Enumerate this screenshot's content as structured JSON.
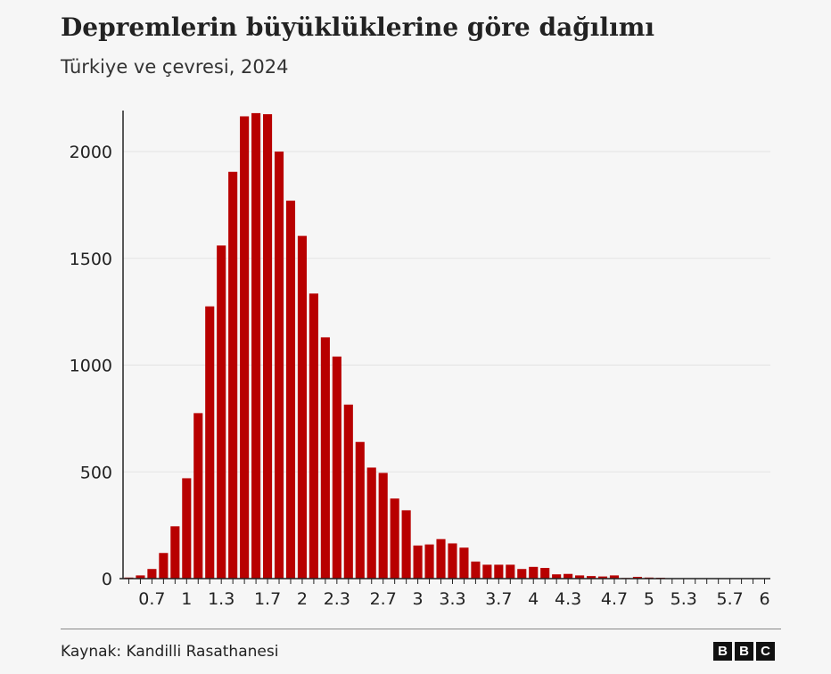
{
  "header": {
    "title": "Depremlerin büyüklüklerine göre dağılımı",
    "subtitle": "Türkiye ve çevresi, 2024"
  },
  "footer": {
    "source": "Kaynak: Kandilli Rasathanesi",
    "logo": [
      "B",
      "B",
      "C"
    ]
  },
  "colors": {
    "bar": "#b80000",
    "background": "#f6f6f6",
    "grid": "#e3e3e3",
    "axis": "#222222"
  },
  "chart_data": {
    "type": "bar",
    "title": "Depremlerin büyüklüklerine göre dağılımı",
    "subtitle": "Türkiye ve çevresi, 2024",
    "xlabel": "",
    "ylabel": "",
    "ylim": [
      0,
      2200
    ],
    "xlim": [
      0.45,
      6.05
    ],
    "grid": true,
    "legend": "none",
    "y_ticks": [
      0,
      500,
      1000,
      1500,
      2000
    ],
    "x_ticks": [
      "0.7",
      "1",
      "1.3",
      "1.7",
      "2",
      "2.3",
      "2.7",
      "3",
      "3.3",
      "3.7",
      "4",
      "4.3",
      "4.7",
      "5",
      "5.3",
      "5.7",
      "6"
    ],
    "x_tick_values": [
      0.7,
      1,
      1.3,
      1.7,
      2,
      2.3,
      2.7,
      3,
      3.3,
      3.7,
      4,
      4.3,
      4.7,
      5,
      5.3,
      5.7,
      6
    ],
    "magnitudes": [
      0.5,
      0.6,
      0.7,
      0.8,
      0.9,
      1.0,
      1.1,
      1.2,
      1.3,
      1.4,
      1.5,
      1.6,
      1.7,
      1.8,
      1.9,
      2.0,
      2.1,
      2.2,
      2.3,
      2.4,
      2.5,
      2.6,
      2.7,
      2.8,
      2.9,
      3.0,
      3.1,
      3.2,
      3.3,
      3.4,
      3.5,
      3.6,
      3.7,
      3.8,
      3.9,
      4.0,
      4.1,
      4.2,
      4.3,
      4.4,
      4.5,
      4.6,
      4.7,
      4.8,
      4.9,
      5.0,
      5.1,
      5.2,
      5.3,
      5.4,
      5.5,
      5.6,
      5.7,
      5.8,
      5.9,
      6.0
    ],
    "values": [
      5,
      15,
      45,
      120,
      245,
      470,
      775,
      1275,
      1560,
      1905,
      2165,
      2180,
      2175,
      2000,
      1770,
      1605,
      1335,
      1130,
      1040,
      815,
      640,
      520,
      495,
      375,
      320,
      155,
      160,
      185,
      165,
      145,
      80,
      65,
      65,
      65,
      45,
      55,
      50,
      20,
      22,
      15,
      12,
      10,
      15,
      3,
      8,
      5,
      4,
      2,
      1,
      1,
      1,
      1,
      1,
      0,
      0,
      1
    ]
  }
}
